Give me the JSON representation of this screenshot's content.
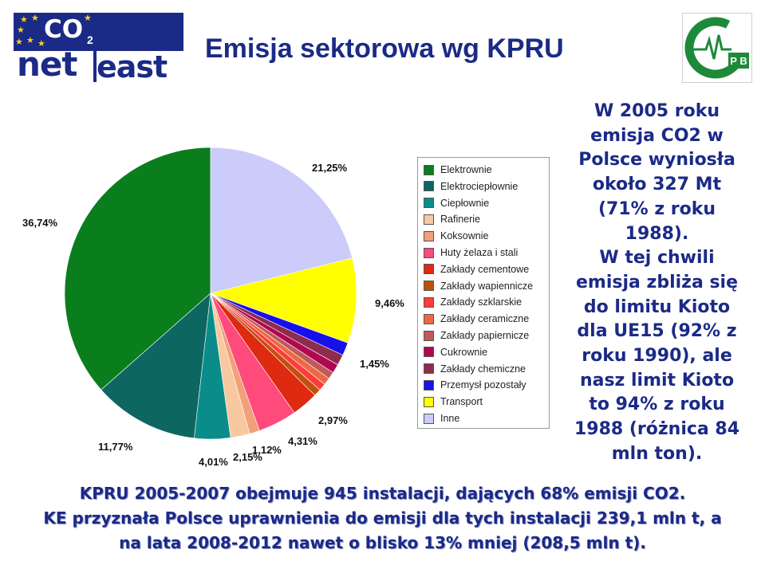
{
  "header": {
    "title": "Emisja sektorowa wg KPRU",
    "logo_left": {
      "co2": "CO",
      "co2_sub": "2",
      "net": "net",
      "east": "east"
    },
    "logo_right": {
      "text": "P B"
    }
  },
  "colors": {
    "title_blue": "#1b2a87",
    "logo_star": "#f6d21b",
    "logo_green": "#1d8a3a"
  },
  "chart_data": {
    "type": "pie",
    "title": "",
    "legend_position": "right",
    "categories": [
      "Elektrownie",
      "Elektrociepłownie",
      "Ciepłownie",
      "Rafinerie",
      "Koksownie",
      "Huty żelaza i stali",
      "Zakłady cementowe",
      "Zakłady wapiennicze",
      "Zakłady szklarskie",
      "Zakłady ceramiczne",
      "Zakłady papiernicze",
      "Cukrownie",
      "Zakłady chemiczne",
      "Przemysł pozostały",
      "Transport",
      "Inne"
    ],
    "values": [
      36.74,
      11.77,
      4.01,
      2.15,
      1.12,
      4.31,
      2.97,
      0.8,
      0.8,
      0.8,
      0.8,
      1.0,
      1.2,
      1.45,
      9.46,
      21.25
    ],
    "colors": [
      "#0a7d1c",
      "#0d6661",
      "#0a8d8a",
      "#f8c9a0",
      "#f2a07a",
      "#ff4a7c",
      "#dd2a10",
      "#c2500d",
      "#ff3b3b",
      "#ec6a43",
      "#c05a5a",
      "#b0074f",
      "#8e2b4f",
      "#1710ea",
      "#ffff00",
      "#ccccfb"
    ],
    "data_labels": [
      "36,74%",
      "11,77%",
      "4,01%",
      "2,15%",
      "1,12%",
      "4,31%",
      "2,97%",
      "",
      "",
      "",
      "",
      "",
      "",
      "1,45%",
      "9,46%",
      "21,25%"
    ]
  },
  "side_note": {
    "lines": [
      "W 2005 roku",
      "emisja CO2 w",
      "Polsce wyniosła",
      "około 327 Mt",
      "(71% z roku",
      "1988).",
      "W  tej chwili",
      "emisja zbliża się",
      "do limitu Kioto",
      "dla UE15 (92% z",
      "roku 1990), ale",
      "nasz limit Kioto",
      "to 94% z roku",
      "1988 (różnica 84",
      "mln ton)."
    ]
  },
  "bottom_note": {
    "lines": [
      "KPRU 2005-2007 obejmuje 945 instalacji, dających 68% emisji CO2.",
      "KE przyznała Polsce uprawnienia do emisji dla tych instalacji 239,1 mln t, a",
      "na lata 2008-2012 nawet o blisko 13% mniej (208,5 mln t)."
    ]
  }
}
